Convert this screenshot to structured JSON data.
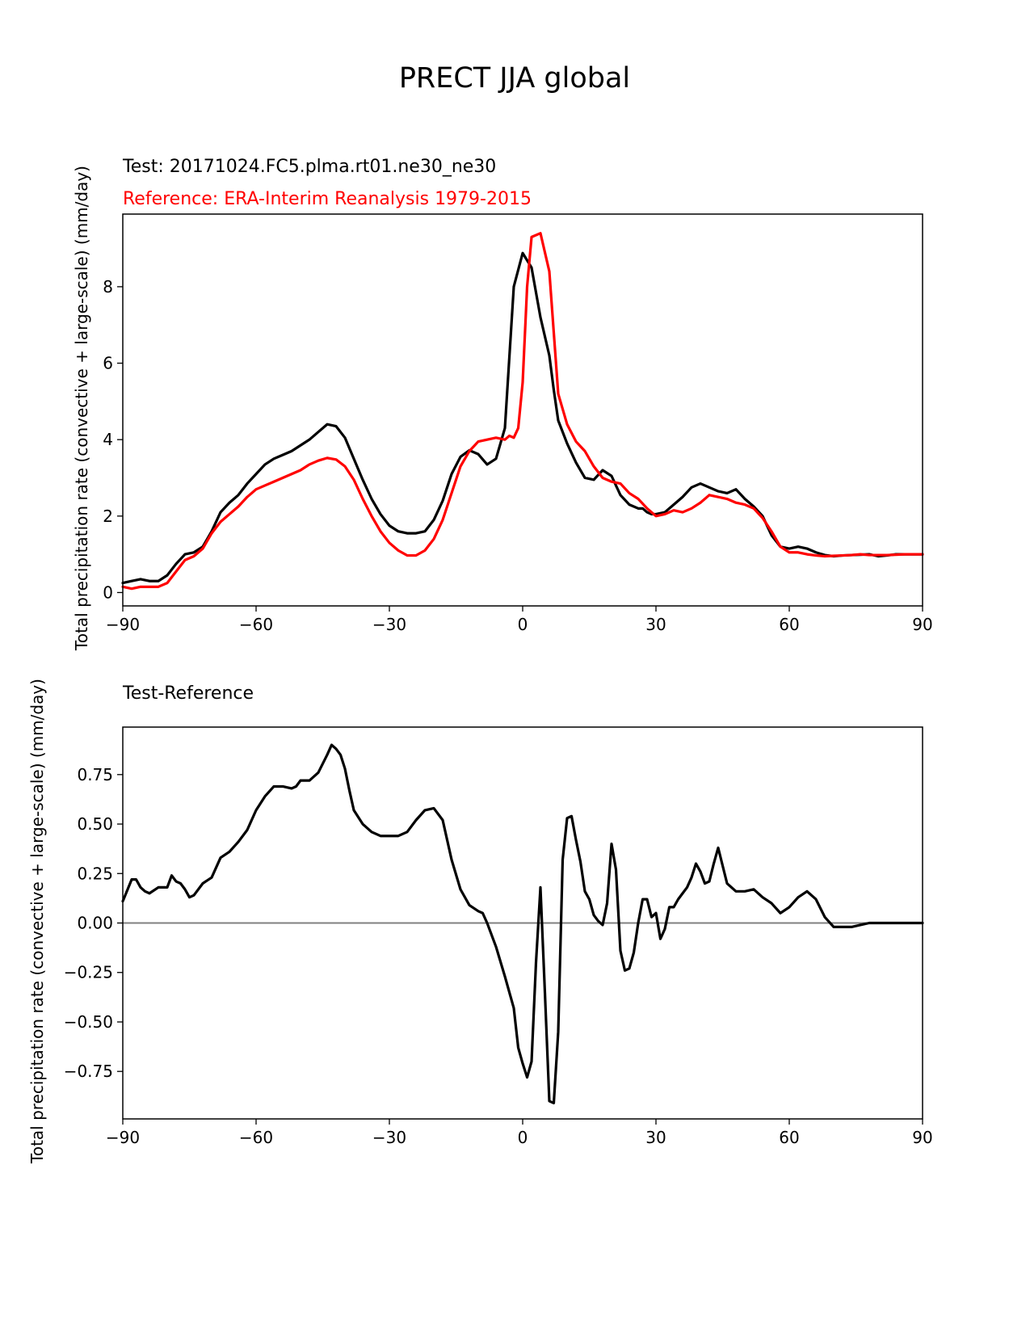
{
  "figure_title": "PRECT JJA global",
  "chart_data": [
    {
      "type": "line",
      "test_label": "Test: 20171024.FC5.plma.rt01.ne30_ne30",
      "reference_label": "Reference: ERA-Interim Reanalysis 1979-2015",
      "ylabel": "Total precipitation rate (convective + large-scale) (mm/day)",
      "xlabel": "",
      "xlim": [
        -90,
        90
      ],
      "ylim": [
        -0.35,
        9.9
      ],
      "xticks": [
        -90,
        -60,
        -30,
        0,
        30,
        60,
        90
      ],
      "xtick_labels": [
        "−90",
        "−60",
        "−30",
        "0",
        "30",
        "60",
        "90"
      ],
      "yticks": [
        0,
        2,
        4,
        6,
        8
      ],
      "ytick_labels": [
        "0",
        "2",
        "4",
        "6",
        "8"
      ],
      "colors": {
        "test": "#000000",
        "reference": "#ff0000"
      },
      "series": [
        {
          "name": "Test",
          "x": [
            -90,
            -88,
            -86,
            -84,
            -82,
            -80,
            -78,
            -76,
            -74,
            -72,
            -70,
            -68,
            -66,
            -64,
            -62,
            -60,
            -58,
            -56,
            -54,
            -52,
            -50,
            -48,
            -46,
            -44,
            -42,
            -40,
            -38,
            -36,
            -34,
            -32,
            -30,
            -28,
            -26,
            -24,
            -22,
            -20,
            -18,
            -16,
            -14,
            -12,
            -10,
            -8,
            -6,
            -4,
            -2,
            0,
            2,
            4,
            6,
            7,
            8,
            10,
            12,
            14,
            16,
            18,
            20,
            22,
            24,
            26,
            27,
            28,
            29,
            30,
            32,
            34,
            36,
            38,
            40,
            42,
            44,
            46,
            48,
            50,
            52,
            54,
            56,
            58,
            60,
            62,
            64,
            66,
            68,
            70,
            72,
            74,
            76,
            78,
            80,
            82,
            84,
            86,
            88,
            90
          ],
          "y": [
            0.25,
            0.3,
            0.35,
            0.3,
            0.3,
            0.45,
            0.75,
            1.0,
            1.05,
            1.2,
            1.6,
            2.1,
            2.35,
            2.55,
            2.85,
            3.1,
            3.35,
            3.5,
            3.6,
            3.7,
            3.85,
            4.0,
            4.2,
            4.4,
            4.35,
            4.05,
            3.5,
            2.95,
            2.45,
            2.05,
            1.75,
            1.6,
            1.55,
            1.55,
            1.6,
            1.9,
            2.4,
            3.1,
            3.55,
            3.72,
            3.62,
            3.35,
            3.5,
            4.3,
            8.0,
            8.88,
            8.5,
            7.2,
            6.2,
            5.3,
            4.5,
            3.9,
            3.4,
            3.0,
            2.95,
            3.2,
            3.05,
            2.55,
            2.3,
            2.2,
            2.2,
            2.1,
            2.05,
            2.05,
            2.1,
            2.3,
            2.5,
            2.75,
            2.85,
            2.75,
            2.65,
            2.6,
            2.7,
            2.45,
            2.25,
            2.0,
            1.5,
            1.2,
            1.15,
            1.2,
            1.15,
            1.05,
            0.98,
            0.95,
            0.97,
            0.98,
            0.99,
            1.0,
            0.95,
            0.97,
            1.0,
            1.0,
            1.0,
            1.0
          ]
        },
        {
          "name": "Reference",
          "x": [
            -90,
            -88,
            -86,
            -84,
            -82,
            -80,
            -78,
            -76,
            -74,
            -72,
            -70,
            -68,
            -66,
            -64,
            -62,
            -60,
            -58,
            -56,
            -54,
            -52,
            -50,
            -48,
            -46,
            -44,
            -42,
            -40,
            -38,
            -36,
            -34,
            -32,
            -30,
            -28,
            -26,
            -24,
            -22,
            -20,
            -18,
            -16,
            -14,
            -12,
            -10,
            -8,
            -6,
            -4,
            -3,
            -2,
            -1,
            0,
            1,
            2,
            4,
            6,
            7,
            8,
            10,
            12,
            14,
            16,
            18,
            20,
            22,
            24,
            26,
            28,
            30,
            32,
            34,
            36,
            38,
            40,
            42,
            44,
            46,
            48,
            50,
            52,
            54,
            56,
            58,
            60,
            62,
            64,
            66,
            68,
            70,
            72,
            74,
            76,
            78,
            80,
            82,
            84,
            86,
            88,
            90
          ],
          "y": [
            0.15,
            0.1,
            0.15,
            0.15,
            0.15,
            0.25,
            0.55,
            0.85,
            0.95,
            1.15,
            1.55,
            1.85,
            2.05,
            2.25,
            2.5,
            2.7,
            2.8,
            2.9,
            3.0,
            3.1,
            3.2,
            3.35,
            3.45,
            3.52,
            3.48,
            3.3,
            2.95,
            2.45,
            2.0,
            1.6,
            1.3,
            1.1,
            0.97,
            0.97,
            1.1,
            1.4,
            1.9,
            2.6,
            3.3,
            3.7,
            3.95,
            4.0,
            4.05,
            4.0,
            4.1,
            4.05,
            4.3,
            5.5,
            8.0,
            9.3,
            9.4,
            8.4,
            6.8,
            5.2,
            4.4,
            3.95,
            3.7,
            3.3,
            3.0,
            2.9,
            2.85,
            2.6,
            2.45,
            2.2,
            2.0,
            2.05,
            2.15,
            2.1,
            2.2,
            2.35,
            2.55,
            2.5,
            2.45,
            2.35,
            2.3,
            2.2,
            1.95,
            1.6,
            1.2,
            1.05,
            1.05,
            1.0,
            0.97,
            0.95,
            0.96,
            0.97,
            0.98,
            1.0,
            0.98,
            0.98,
            0.98,
            0.99,
            1.0,
            1.0,
            1.0
          ]
        }
      ]
    },
    {
      "type": "line",
      "title": "Test-Reference",
      "ylabel": "Total precipitation rate (convective + large-scale) (mm/day)",
      "xlabel": "",
      "xlim": [
        -90,
        90
      ],
      "ylim": [
        -0.99,
        0.99
      ],
      "xticks": [
        -90,
        -60,
        -30,
        0,
        30,
        60,
        90
      ],
      "xtick_labels": [
        "−90",
        "−60",
        "−30",
        "0",
        "30",
        "60",
        "90"
      ],
      "yticks": [
        0.75,
        0.5,
        0.25,
        0.0,
        -0.25,
        -0.5,
        -0.75
      ],
      "ytick_labels": [
        "0.75",
        "0.50",
        "0.25",
        "0.00",
        "−0.25",
        "−0.50",
        "−0.75"
      ],
      "zero_line_color": "#808080",
      "series": [
        {
          "name": "Test-Reference",
          "x": [
            -90,
            -88,
            -87,
            -86,
            -85,
            -84,
            -82,
            -80,
            -79,
            -78,
            -77,
            -76,
            -75,
            -74,
            -72,
            -70,
            -68,
            -66,
            -64,
            -62,
            -60,
            -58,
            -56,
            -54,
            -52,
            -51,
            -50,
            -48,
            -46,
            -44,
            -43,
            -42,
            -41,
            -40,
            -39,
            -38,
            -36,
            -34,
            -32,
            -30,
            -28,
            -26,
            -24,
            -22,
            -20,
            -18,
            -17,
            -16,
            -14,
            -12,
            -10,
            -9,
            -8,
            -6,
            -4,
            -2,
            -1,
            0,
            1,
            2,
            3,
            4,
            5,
            6,
            7,
            8,
            9,
            10,
            11,
            12,
            13,
            14,
            15,
            16,
            17,
            18,
            19,
            20,
            21,
            22,
            23,
            24,
            25,
            26,
            27,
            28,
            29,
            30,
            31,
            32,
            33,
            34,
            35,
            36,
            37,
            38,
            39,
            40,
            41,
            42,
            43,
            44,
            45,
            46,
            48,
            50,
            52,
            54,
            56,
            58,
            60,
            62,
            64,
            66,
            68,
            70,
            72,
            74,
            76,
            78,
            80,
            82,
            84,
            86,
            88,
            90
          ],
          "y": [
            0.11,
            0.22,
            0.22,
            0.18,
            0.16,
            0.15,
            0.18,
            0.18,
            0.24,
            0.21,
            0.2,
            0.17,
            0.13,
            0.14,
            0.2,
            0.23,
            0.33,
            0.36,
            0.41,
            0.47,
            0.57,
            0.64,
            0.69,
            0.69,
            0.68,
            0.69,
            0.72,
            0.72,
            0.76,
            0.85,
            0.9,
            0.88,
            0.85,
            0.78,
            0.67,
            0.57,
            0.5,
            0.46,
            0.44,
            0.44,
            0.44,
            0.46,
            0.52,
            0.57,
            0.58,
            0.52,
            0.42,
            0.32,
            0.17,
            0.09,
            0.06,
            0.05,
            0.0,
            -0.12,
            -0.27,
            -0.43,
            -0.63,
            -0.71,
            -0.78,
            -0.7,
            -0.2,
            0.18,
            -0.35,
            -0.9,
            -0.91,
            -0.55,
            0.32,
            0.53,
            0.54,
            0.42,
            0.31,
            0.16,
            0.12,
            0.04,
            0.01,
            -0.01,
            0.1,
            0.4,
            0.27,
            -0.14,
            -0.24,
            -0.23,
            -0.15,
            0.0,
            0.12,
            0.12,
            0.03,
            0.05,
            -0.08,
            -0.03,
            0.08,
            0.08,
            0.12,
            0.15,
            0.18,
            0.23,
            0.3,
            0.26,
            0.2,
            0.21,
            0.3,
            0.38,
            0.29,
            0.2,
            0.16,
            0.16,
            0.17,
            0.13,
            0.1,
            0.05,
            0.08,
            0.13,
            0.16,
            0.12,
            0.03,
            -0.02,
            -0.02,
            -0.02,
            -0.01,
            0.0,
            0.0,
            0.0,
            0.0,
            0.0,
            0.0,
            0.0
          ]
        }
      ]
    }
  ]
}
